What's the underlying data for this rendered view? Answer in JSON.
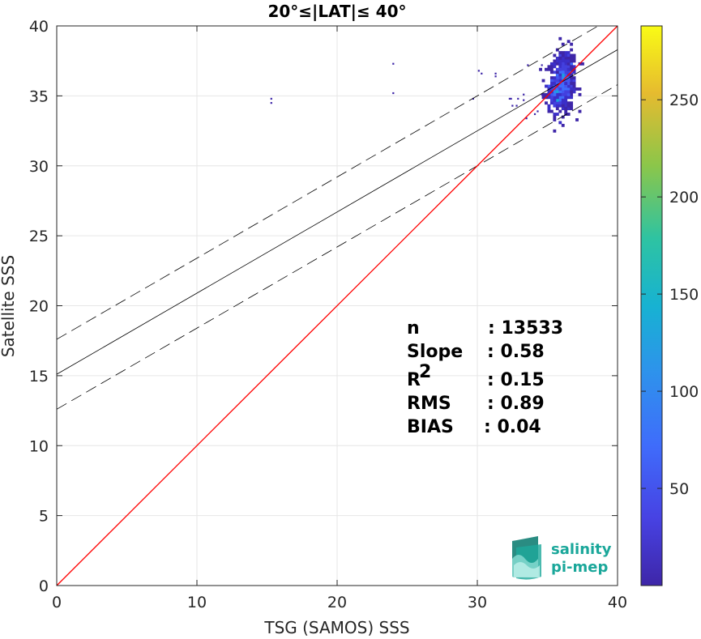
{
  "chart_data": {
    "type": "scatter",
    "title": "20°≤|LAT|≤ 40°",
    "xlabel": "TSG (SAMOS) SSS",
    "ylabel": "Satellite SSS",
    "xlim": [
      0,
      40
    ],
    "ylim": [
      0,
      40
    ],
    "xticks": [
      "0",
      "10",
      "20",
      "30",
      "40"
    ],
    "yticks": [
      "0",
      "5",
      "10",
      "15",
      "20",
      "25",
      "30",
      "35",
      "40"
    ],
    "grid": true,
    "colorbar": {
      "min": 0,
      "max": 288,
      "ticks": [
        "50",
        "100",
        "150",
        "200",
        "250"
      ],
      "tick_values": [
        50,
        100,
        150,
        200,
        250
      ],
      "colormap": "parula"
    },
    "reference_line": {
      "name": "1:1",
      "color": "#ff0000",
      "slope": 1,
      "intercept": 0
    },
    "fit_line": {
      "slope": 0.58,
      "intercept": 15.1,
      "color": "#000000"
    },
    "fit_bounds": {
      "offset": 2.5,
      "style": "dashed",
      "color": "#000000"
    },
    "stats": [
      {
        "label": "n",
        "value": ": 13533"
      },
      {
        "label": "Slope",
        "value": ": 0.58"
      },
      {
        "label": "R",
        "sup": "2",
        "value": ": 0.15"
      },
      {
        "label": "RMS",
        "value": ": 0.89"
      },
      {
        "label": "BIAS",
        "value": ": 0.04"
      }
    ],
    "outlier_points": [
      [
        15.3,
        34.8
      ],
      [
        15.3,
        34.5
      ],
      [
        24.0,
        37.3
      ],
      [
        24.0,
        35.2
      ],
      [
        30.1,
        36.8
      ],
      [
        30.3,
        36.6
      ],
      [
        31.3,
        36.6
      ],
      [
        31.3,
        36.4
      ],
      [
        29.7,
        34.8
      ],
      [
        32.3,
        34.8
      ],
      [
        32.5,
        34.3
      ],
      [
        32.8,
        34.3
      ],
      [
        32.4,
        34.8
      ],
      [
        32.9,
        34.8
      ],
      [
        33.3,
        35.1
      ],
      [
        33.3,
        34.7
      ],
      [
        33.6,
        37.2
      ],
      [
        34.6,
        37.2
      ],
      [
        34.3,
        33.9
      ],
      [
        33.5,
        33.4
      ],
      [
        34.1,
        33.7
      ],
      [
        34.6,
        35.1
      ]
    ],
    "density_clusters": [
      {
        "cx": 36.0,
        "cy": 35.8,
        "sx": 0.45,
        "sy": 1.0,
        "count": 420
      },
      {
        "cx": 36.4,
        "cy": 36.6,
        "sx": 0.35,
        "sy": 0.9,
        "count": 140
      },
      {
        "cx": 35.5,
        "cy": 35.1,
        "sx": 0.35,
        "sy": 0.6,
        "count": 120
      }
    ]
  },
  "logo": {
    "line1": "salinity",
    "line2": "pi-mep"
  }
}
